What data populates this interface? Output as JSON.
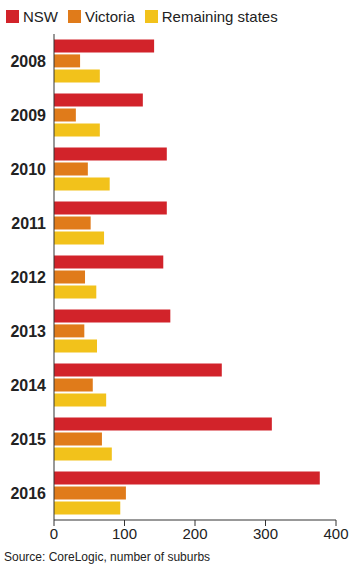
{
  "chart_data": {
    "type": "bar",
    "orientation": "horizontal",
    "categories": [
      "2008",
      "2009",
      "2010",
      "2011",
      "2012",
      "2013",
      "2014",
      "2015",
      "2016"
    ],
    "series": [
      {
        "name": "NSW",
        "color": "#d2232a",
        "values": [
          142,
          126,
          160,
          160,
          155,
          165,
          238,
          309,
          377
        ]
      },
      {
        "name": "Victoria",
        "color": "#e07b1a",
        "values": [
          37,
          31,
          48,
          52,
          44,
          43,
          55,
          68,
          102
        ]
      },
      {
        "name": "Remaining states",
        "color": "#f2c21b",
        "values": [
          65,
          65,
          79,
          71,
          60,
          61,
          74,
          82,
          94
        ]
      }
    ],
    "xlim": [
      0,
      400
    ],
    "xticks": [
      0,
      100,
      200,
      300,
      400
    ],
    "grid": false,
    "legend": "top-left",
    "annotation": "Source: CoreLogic, number of suburbs"
  }
}
